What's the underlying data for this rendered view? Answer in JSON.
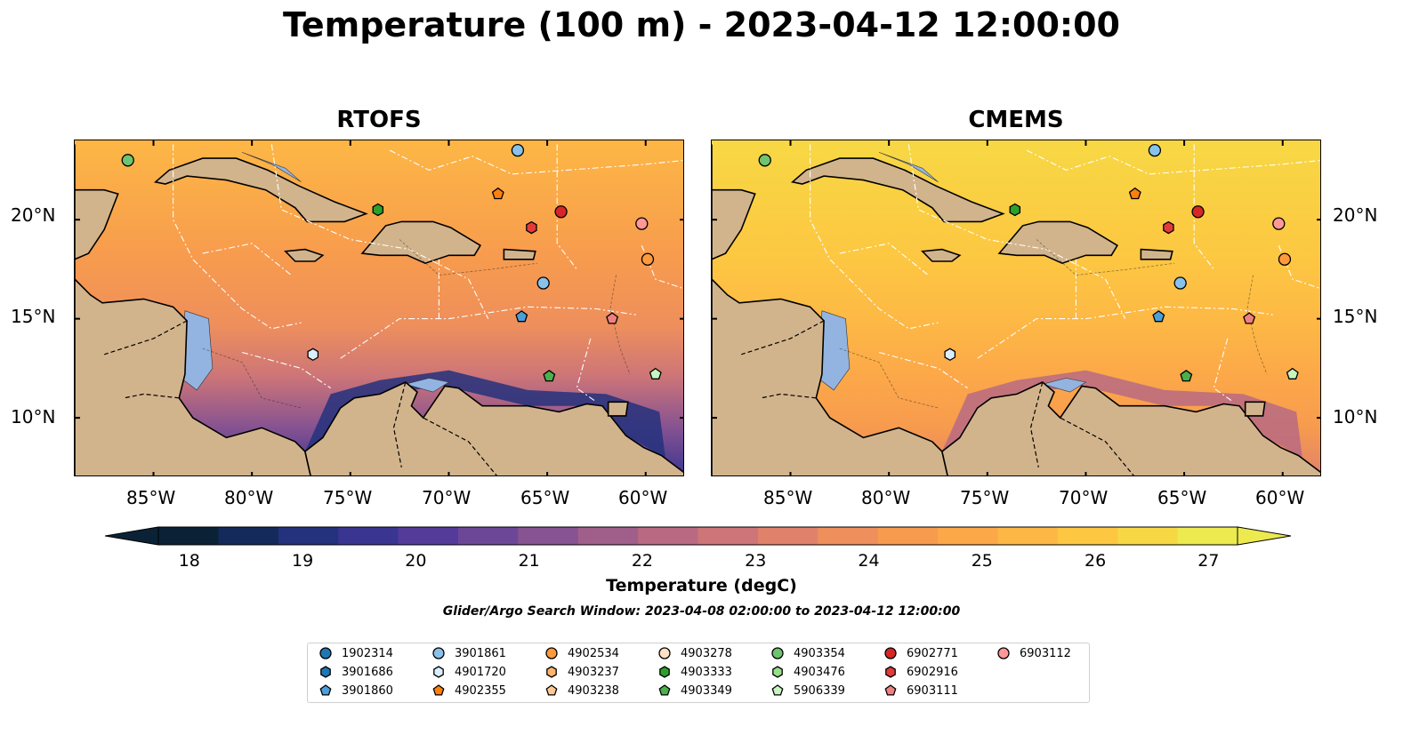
{
  "title": "Temperature (100 m) - 2023-04-12 12:00:00",
  "panels": [
    {
      "title": "RTOFS"
    },
    {
      "title": "CMEMS"
    }
  ],
  "map": {
    "lon_range": [
      -89,
      -58
    ],
    "lat_range": [
      7,
      24
    ],
    "lon_ticks": [
      "85°W",
      "80°W",
      "75°W",
      "70°W",
      "65°W",
      "60°W"
    ],
    "lat_ticks": [
      "20°N",
      "15°N",
      "10°N"
    ],
    "colors": {
      "ocean": "#93b4e0",
      "land": "#d2b48c",
      "deep": "#0b2236"
    }
  },
  "colorbar": {
    "label": "Temperature (degC)",
    "min": 18,
    "max": 27,
    "ticks": [
      "18",
      "19",
      "20",
      "21",
      "22",
      "23",
      "24",
      "25",
      "26",
      "27"
    ],
    "colors": [
      "#0b2236",
      "#132a5a",
      "#24317c",
      "#3a3591",
      "#543b9a",
      "#6d4797",
      "#875391",
      "#a05f8b",
      "#b96a82",
      "#cd7578",
      "#e0826b",
      "#ee8f5c",
      "#f79b4e",
      "#fca849",
      "#fdb745",
      "#fdc742",
      "#f7d844",
      "#ecea4f"
    ]
  },
  "search_window": "Glider/Argo Search Window: 2023-04-08 02:00:00 to 2023-04-12 12:00:00",
  "legend": [
    {
      "id": "1902314",
      "marker": "circle",
      "color": "#1f77b4"
    },
    {
      "id": "3901686",
      "marker": "hexagon",
      "color": "#1f77b4"
    },
    {
      "id": "3901860",
      "marker": "pentagon",
      "color": "#4c9fd8"
    },
    {
      "id": "3901861",
      "marker": "circle",
      "color": "#88c2ea"
    },
    {
      "id": "4901720",
      "marker": "hexagon",
      "color": "#dbeeff"
    },
    {
      "id": "4902355",
      "marker": "pentagon",
      "color": "#ff7f0e"
    },
    {
      "id": "4902534",
      "marker": "circle",
      "color": "#ff9a3c"
    },
    {
      "id": "4903237",
      "marker": "hexagon",
      "color": "#ffb36b"
    },
    {
      "id": "4903238",
      "marker": "pentagon",
      "color": "#ffc995"
    },
    {
      "id": "4903278",
      "marker": "circle",
      "color": "#ffe0c4"
    },
    {
      "id": "4903333",
      "marker": "hexagon",
      "color": "#2ca02c"
    },
    {
      "id": "4903349",
      "marker": "pentagon",
      "color": "#4cb04c"
    },
    {
      "id": "4903354",
      "marker": "circle",
      "color": "#6fc46f"
    },
    {
      "id": "4903476",
      "marker": "hexagon",
      "color": "#98df8a"
    },
    {
      "id": "5906339",
      "marker": "pentagon",
      "color": "#c7f5c0"
    },
    {
      "id": "6902771",
      "marker": "circle",
      "color": "#d62728"
    },
    {
      "id": "6902916",
      "marker": "hexagon",
      "color": "#e33b3b"
    },
    {
      "id": "6903111",
      "marker": "pentagon",
      "color": "#f08080"
    },
    {
      "id": "6903112",
      "marker": "circle",
      "color": "#ff9896"
    }
  ],
  "observations": [
    {
      "id": "4903354",
      "lon": -86.3,
      "lat": 23.0
    },
    {
      "id": "3901861",
      "lon": -66.5,
      "lat": 23.5
    },
    {
      "id": "4902355",
      "lon": -67.5,
      "lat": 21.3
    },
    {
      "id": "4903333",
      "lon": -73.6,
      "lat": 20.5
    },
    {
      "id": "6902916",
      "lon": -65.8,
      "lat": 19.6
    },
    {
      "id": "6902771",
      "lon": -64.3,
      "lat": 20.4
    },
    {
      "id": "6903112",
      "lon": -60.2,
      "lat": 19.8
    },
    {
      "id": "4902534",
      "lon": -59.9,
      "lat": 18.0
    },
    {
      "id": "3901861",
      "lon": -65.2,
      "lat": 16.8
    },
    {
      "id": "3901860",
      "lon": -66.3,
      "lat": 15.1
    },
    {
      "id": "6903111",
      "lon": -61.7,
      "lat": 15.0
    },
    {
      "id": "4901720",
      "lon": -76.9,
      "lat": 13.2
    },
    {
      "id": "4903349",
      "lon": -64.9,
      "lat": 12.1
    },
    {
      "id": "5906339",
      "lon": -59.5,
      "lat": 12.2
    }
  ]
}
